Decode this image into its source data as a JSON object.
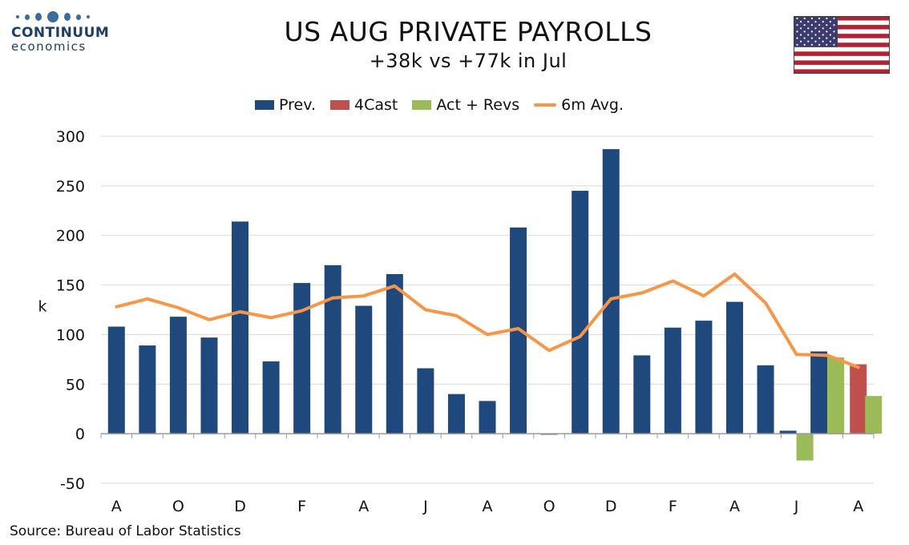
{
  "header": {
    "logo_name": "CONTINUUM",
    "logo_sub": "economics",
    "title": "US AUG PRIVATE PAYROLLS",
    "subtitle": "+38k vs +77k in Jul",
    "flag_icon": "us-flag-icon"
  },
  "legend": {
    "prev": "Prev.",
    "forecast": "4Cast",
    "actual": "Act + Revs",
    "avg": "6m Avg."
  },
  "source": "Source: Bureau of Labor Statistics",
  "colors": {
    "prev": "#1f497d",
    "forecast": "#c0504d",
    "actual": "#9bbb59",
    "avg": "#f79646",
    "logo": "#1d3f66"
  },
  "chart_data": {
    "type": "bar",
    "title": "US AUG PRIVATE PAYROLLS",
    "subtitle": "+38k vs +77k in Jul",
    "ylabel": "k",
    "xlabel": "",
    "ylim": [
      -50,
      300
    ],
    "yticks": [
      -50,
      0,
      50,
      100,
      150,
      200,
      250,
      300
    ],
    "grid": true,
    "legend_position": "top",
    "x_tick_labels": [
      "A",
      "O",
      "D",
      "F",
      "A",
      "J",
      "A",
      "O",
      "D",
      "F",
      "A",
      "J",
      "A"
    ],
    "x_tick_every": 2,
    "categories": [
      "Aug",
      "Sep",
      "Oct",
      "Nov",
      "Dec",
      "Jan",
      "Feb",
      "Mar",
      "Apr",
      "May",
      "Jun",
      "Jul",
      "Aug",
      "Sep",
      "Oct",
      "Nov",
      "Dec",
      "Jan",
      "Feb",
      "Mar",
      "Apr",
      "May",
      "Jun",
      "Jul",
      "Aug"
    ],
    "series": [
      {
        "name": "Prev.",
        "type": "bar",
        "values": [
          108,
          89,
          118,
          97,
          214,
          73,
          152,
          170,
          129,
          161,
          66,
          40,
          33,
          208,
          -1,
          245,
          287,
          79,
          107,
          114,
          133,
          69,
          3,
          83,
          null
        ]
      },
      {
        "name": "4Cast",
        "type": "bar",
        "values": [
          null,
          null,
          null,
          null,
          null,
          null,
          null,
          null,
          null,
          null,
          null,
          null,
          null,
          null,
          null,
          null,
          null,
          null,
          null,
          null,
          null,
          null,
          null,
          null,
          70
        ]
      },
      {
        "name": "Act + Revs",
        "type": "bar",
        "values": [
          null,
          null,
          null,
          null,
          null,
          null,
          null,
          null,
          null,
          null,
          null,
          null,
          null,
          null,
          null,
          null,
          null,
          null,
          null,
          null,
          null,
          null,
          -27,
          77,
          38
        ]
      },
      {
        "name": "6m Avg.",
        "type": "line",
        "values": [
          128,
          136,
          127,
          115,
          123,
          117,
          124,
          137,
          139,
          149,
          125,
          119,
          100,
          106,
          84,
          98,
          136,
          142,
          154,
          139,
          161,
          132,
          80,
          79,
          67
        ]
      }
    ]
  }
}
